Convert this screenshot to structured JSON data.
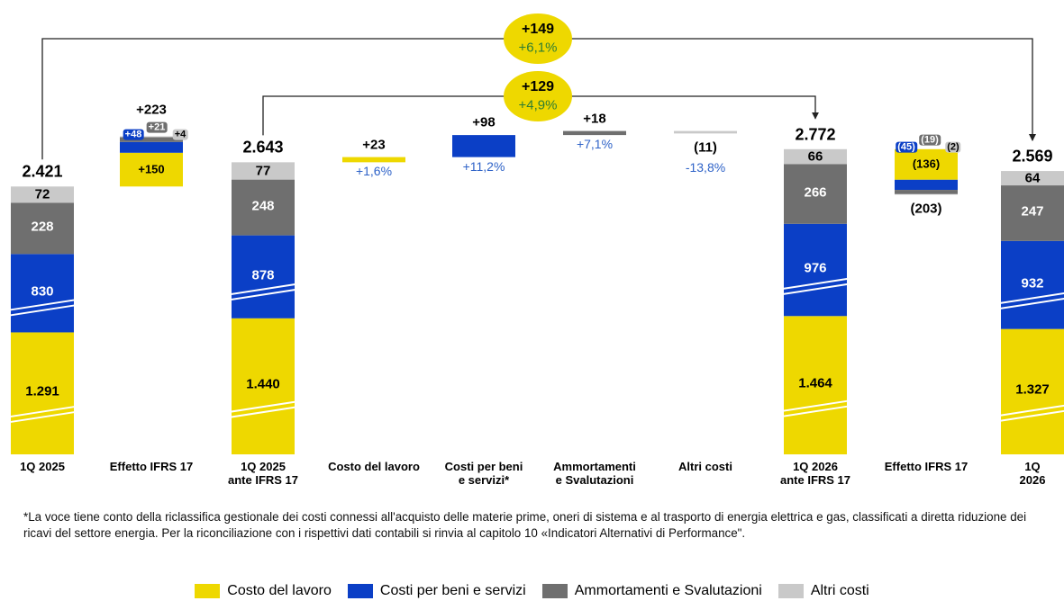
{
  "chart_data": {
    "type": "waterfall",
    "categories": [
      "1Q 2025",
      "Effetto IFRS 17",
      "1Q 2025\nante IFRS 17",
      "Costo del lavoro",
      "Costi per beni\ne servizi*",
      "Ammortamenti\ne Svalutazioni",
      "Altri costi",
      "1Q 2026\nante IFRS 17",
      "Effetto IFRS 17",
      "1Q 2026"
    ],
    "series": [
      {
        "name": "Costo del lavoro",
        "color": "#eed800",
        "broken": true,
        "values": [
          1291,
          150,
          1440,
          23,
          null,
          null,
          null,
          1464,
          -136,
          1327
        ],
        "value_labels": [
          "1.291",
          "+150",
          "1.440",
          null,
          null,
          null,
          null,
          "1.464",
          "(136)",
          "1.327"
        ]
      },
      {
        "name": "Costi per beni e servizi",
        "color": "#0b3fc6",
        "broken": true,
        "values": [
          830,
          48,
          878,
          null,
          98,
          null,
          null,
          976,
          -45,
          932
        ],
        "value_labels": [
          "830",
          "+48",
          "878",
          null,
          null,
          null,
          null,
          "976",
          "(45)",
          "932"
        ]
      },
      {
        "name": "Ammortamenti e Svalutazioni",
        "color": "#6f6f6f",
        "broken": false,
        "values": [
          228,
          21,
          248,
          null,
          null,
          18,
          null,
          266,
          -19,
          247
        ],
        "value_labels": [
          "228",
          "+21",
          "248",
          null,
          null,
          null,
          null,
          "266",
          "(19)",
          "247"
        ]
      },
      {
        "name": "Altri costi",
        "color": "#c9c9c9",
        "broken": false,
        "values": [
          72,
          4,
          77,
          null,
          null,
          null,
          -11,
          66,
          -2,
          64
        ],
        "value_labels": [
          "72",
          "+4",
          "77",
          null,
          null,
          null,
          null,
          "66",
          "(2)",
          "64"
        ]
      }
    ],
    "totals": {
      "values": [
        2421,
        223,
        2643,
        23,
        98,
        18,
        -11,
        2772,
        -203,
        2569
      ],
      "value_labels": [
        "2.421",
        "+223",
        "2.643",
        "+23",
        "+98",
        "+18",
        "(11)",
        "2.772",
        "(203)",
        "2.569"
      ]
    },
    "percentages": {
      "values": [
        null,
        null,
        null,
        1.6,
        11.2,
        7.1,
        -13.8,
        null,
        null,
        null
      ],
      "value_labels": [
        null,
        null,
        null,
        "+1,6%",
        "+11,2%",
        "+7,1%",
        "-13,8%",
        null,
        null,
        null
      ]
    },
    "bridges": [
      {
        "value": 149,
        "value_label": "+149",
        "pct": 6.1,
        "pct_label": "+6,1%"
      },
      {
        "value": 129,
        "value_label": "+129",
        "pct": 4.9,
        "pct_label": "+4,9%"
      }
    ],
    "footnote": "*La voce tiene conto della riclassifica gestionale dei costi connessi all'acquisto delle materie prime, oneri di sistema e al trasporto di energia elettrica e gas, classificati a diretta riduzione dei ricavi del settore energia. Per la riconciliazione con i rispettivi dati contabili si rinvia al capitolo 10  «Indicatori Alternativi di Performance\"."
  }
}
